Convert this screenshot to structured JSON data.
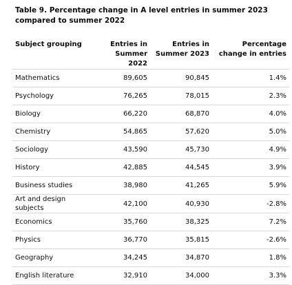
{
  "header": {
    "title": "Table 9. Percentage change in A level entries in summer 2023 compared to summer 2022"
  },
  "table": {
    "columns": [
      "Subject grouping",
      "Entries in Summer 2022",
      "Entries in Summer 2023",
      "Percentage change in entries"
    ],
    "rows": [
      [
        "Mathematics",
        "89,605",
        "90,845",
        "1.4%"
      ],
      [
        "Psychology",
        "76,265",
        "78,015",
        "2.3%"
      ],
      [
        "Biology",
        "66,220",
        "68,870",
        "4.0%"
      ],
      [
        "Chemistry",
        "54,865",
        "57,620",
        "5.0%"
      ],
      [
        "Sociology",
        "43,590",
        "45,730",
        "4.9%"
      ],
      [
        "History",
        "42,885",
        "44,545",
        "3.9%"
      ],
      [
        "Business studies",
        "38,980",
        "41,265",
        "5.9%"
      ],
      [
        "Art and design subjects",
        "42,100",
        "40,930",
        "-2.8%"
      ],
      [
        "Economics",
        "35,760",
        "38,325",
        "7.2%"
      ],
      [
        "Physics",
        "36,770",
        "35,815",
        "-2.6%"
      ],
      [
        "Geography",
        "34,245",
        "34,870",
        "1.8%"
      ],
      [
        "English literature",
        "32,910",
        "34,000",
        "3.3%"
      ]
    ]
  }
}
